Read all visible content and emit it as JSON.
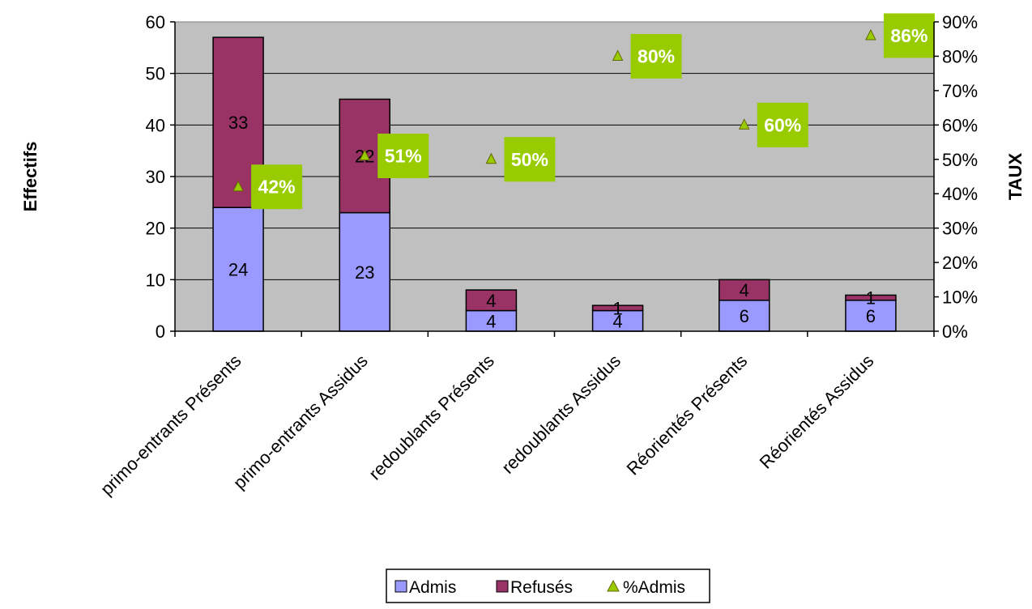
{
  "chart_data": {
    "type": "bar",
    "stacked": true,
    "categories": [
      "primo-entrants Présents",
      "primo-entrants Assidus",
      "redoublants Présents",
      "redoublants Assidus",
      "Réorientés Présents",
      "Réorientés Assidus"
    ],
    "series": [
      {
        "name": "Admis",
        "values": [
          24,
          23,
          4,
          4,
          6,
          6
        ],
        "color": "#9999ff"
      },
      {
        "name": "Refusés",
        "values": [
          33,
          22,
          4,
          1,
          4,
          1
        ],
        "color": "#993366"
      }
    ],
    "line_series": {
      "name": "%Admis",
      "type": "scatter",
      "axis": "secondary",
      "values": [
        0.42,
        0.51,
        0.5,
        0.8,
        0.6,
        0.86
      ],
      "labels": [
        "42%",
        "51%",
        "50%",
        "80%",
        "60%",
        "86%"
      ],
      "marker_color": "#99cc00",
      "label_bg": "#99cc00"
    },
    "ylabel": "Effectifs",
    "y2label": "TAUX",
    "ylim": [
      0,
      60
    ],
    "yticks": [
      "0",
      "10",
      "20",
      "30",
      "40",
      "50",
      "60"
    ],
    "y2lim": [
      0,
      0.9
    ],
    "y2ticks": [
      "0%",
      "10%",
      "20%",
      "30%",
      "40%",
      "50%",
      "60%",
      "70%",
      "80%",
      "90%"
    ],
    "grid": true,
    "plot_background": "#c0c0c0",
    "legend": {
      "position": "bottom",
      "entries": [
        "Admis",
        "Refusés",
        "%Admis"
      ]
    }
  }
}
